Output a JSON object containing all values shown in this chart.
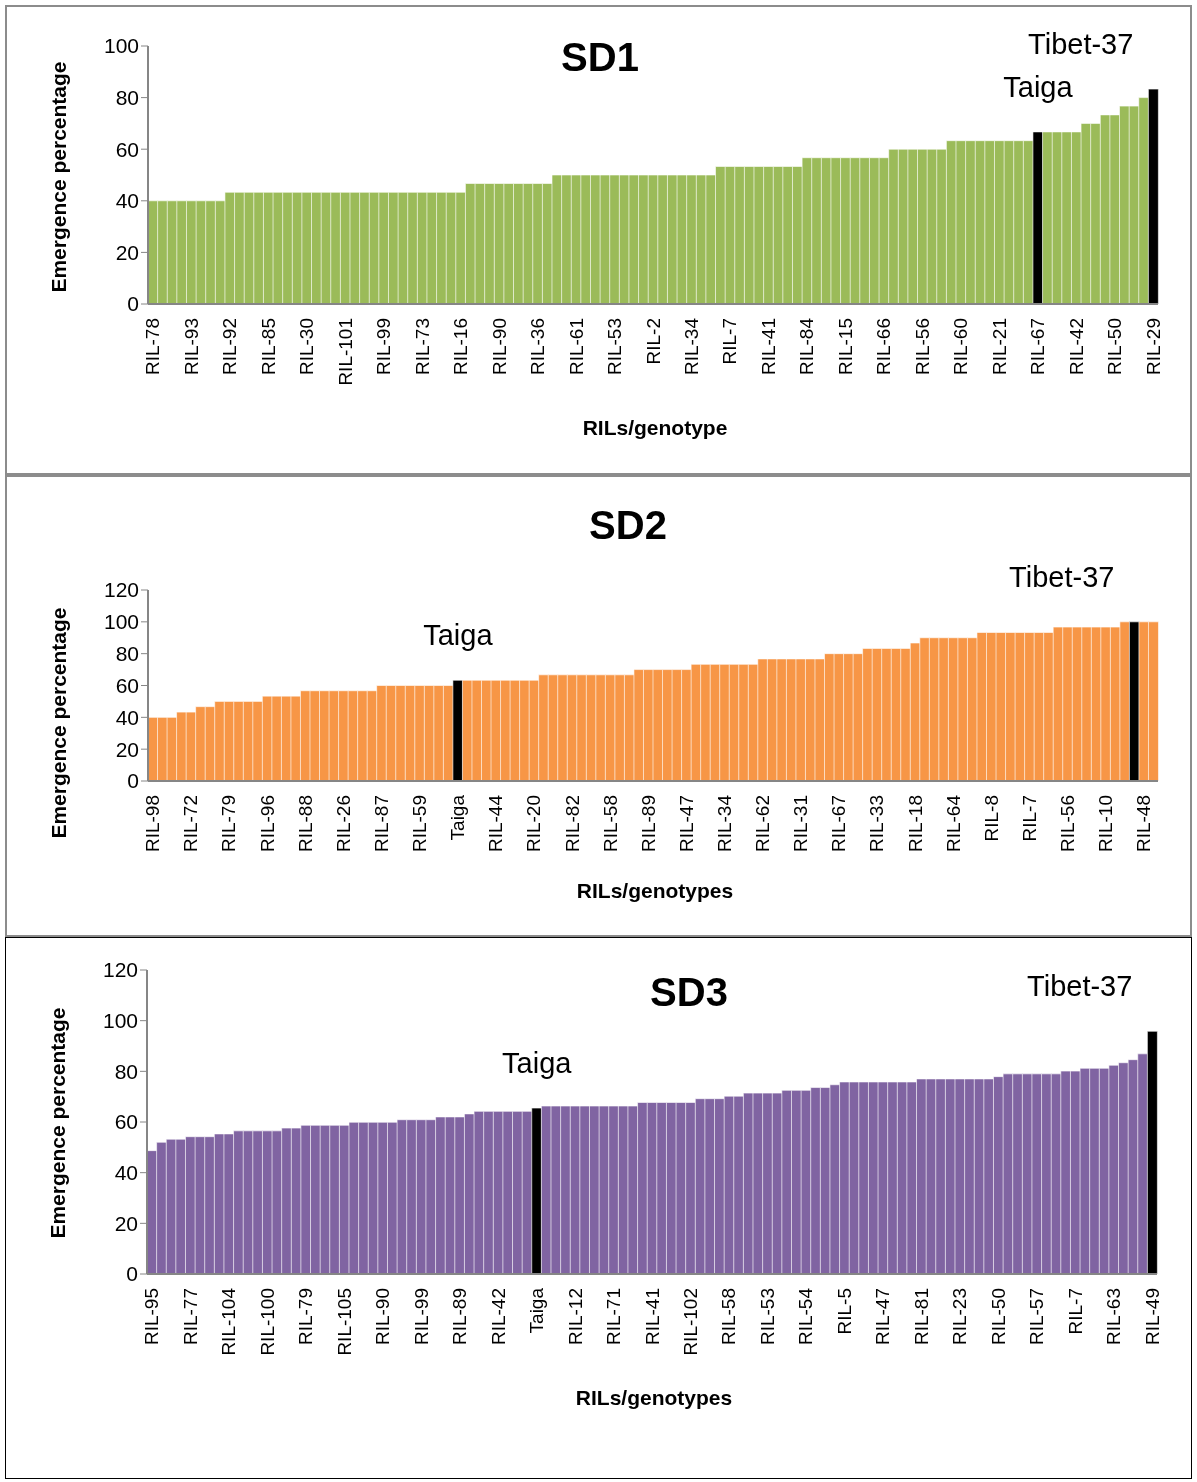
{
  "chart_data": [
    {
      "type": "bar",
      "title": "SD1",
      "xlabel": "RILs/genotype",
      "ylabel": "Emergence percentage",
      "categories": [
        "RIL-78",
        null,
        null,
        null,
        "RIL-93",
        null,
        null,
        null,
        "RIL-92",
        null,
        null,
        null,
        "RIL-85",
        null,
        null,
        null,
        "RIL-30",
        null,
        null,
        null,
        "RIL-101",
        null,
        null,
        null,
        "RIL-99",
        null,
        null,
        null,
        "RIL-73",
        null,
        null,
        null,
        "RIL-16",
        null,
        null,
        null,
        "RIL-90",
        null,
        null,
        null,
        "RIL-36",
        null,
        null,
        null,
        "RIL-61",
        null,
        null,
        null,
        "RIL-53",
        null,
        null,
        null,
        "RIL-2",
        null,
        null,
        null,
        "RIL-34",
        null,
        null,
        null,
        "RIL-7",
        null,
        null,
        null,
        "RIL-41",
        null,
        null,
        null,
        "RIL-84",
        null,
        null,
        null,
        "RIL-15",
        null,
        null,
        null,
        "RIL-66",
        null,
        null,
        null,
        "RIL-56",
        null,
        null,
        null,
        "RIL-60",
        null,
        null,
        null,
        "RIL-21",
        null,
        null,
        null,
        "RIL-67",
        null,
        null,
        null,
        "RIL-42",
        null,
        null,
        null,
        "RIL-50",
        null,
        null,
        null,
        "RIL-29"
      ],
      "values": [
        40,
        40,
        40,
        40,
        40,
        40,
        40,
        40,
        43.3,
        43.3,
        43.3,
        43.3,
        43.3,
        43.3,
        43.3,
        43.3,
        43.3,
        43.3,
        43.3,
        43.3,
        43.3,
        43.3,
        43.3,
        43.3,
        43.3,
        43.3,
        43.3,
        43.3,
        43.3,
        43.3,
        43.3,
        43.3,
        43.3,
        46.7,
        46.7,
        46.7,
        46.7,
        46.7,
        46.7,
        46.7,
        46.7,
        46.7,
        50,
        50,
        50,
        50,
        50,
        50,
        50,
        50,
        50,
        50,
        50,
        50,
        50,
        50,
        50,
        50,
        50,
        53.3,
        53.3,
        53.3,
        53.3,
        53.3,
        53.3,
        53.3,
        53.3,
        53.3,
        56.7,
        56.7,
        56.7,
        56.7,
        56.7,
        56.7,
        56.7,
        56.7,
        56.7,
        60,
        60,
        60,
        60,
        60,
        60,
        63.3,
        63.3,
        63.3,
        63.3,
        63.3,
        63.3,
        63.3,
        63.3,
        63.3,
        66.7,
        66.7,
        66.7,
        66.7,
        66.7,
        70,
        70,
        73.3,
        73.3,
        76.7,
        76.7,
        80,
        83.3
      ],
      "colors": [
        "#9bbb59",
        "#9bbb59",
        "#9bbb59",
        "#9bbb59",
        "#9bbb59",
        "#9bbb59",
        "#9bbb59",
        "#9bbb59",
        "#9bbb59",
        "#9bbb59",
        "#9bbb59",
        "#9bbb59",
        "#9bbb59",
        "#9bbb59",
        "#9bbb59",
        "#9bbb59",
        "#9bbb59",
        "#9bbb59",
        "#9bbb59",
        "#9bbb59",
        "#9bbb59",
        "#9bbb59",
        "#9bbb59",
        "#9bbb59",
        "#9bbb59",
        "#9bbb59",
        "#9bbb59",
        "#9bbb59",
        "#9bbb59",
        "#9bbb59",
        "#9bbb59",
        "#9bbb59",
        "#9bbb59",
        "#9bbb59",
        "#9bbb59",
        "#9bbb59",
        "#9bbb59",
        "#9bbb59",
        "#9bbb59",
        "#9bbb59",
        "#9bbb59",
        "#9bbb59",
        "#9bbb59",
        "#9bbb59",
        "#9bbb59",
        "#9bbb59",
        "#9bbb59",
        "#9bbb59",
        "#9bbb59",
        "#9bbb59",
        "#9bbb59",
        "#9bbb59",
        "#9bbb59",
        "#9bbb59",
        "#9bbb59",
        "#9bbb59",
        "#9bbb59",
        "#9bbb59",
        "#9bbb59",
        "#9bbb59",
        "#9bbb59",
        "#9bbb59",
        "#9bbb59",
        "#9bbb59",
        "#9bbb59",
        "#9bbb59",
        "#9bbb59",
        "#9bbb59",
        "#9bbb59",
        "#9bbb59",
        "#9bbb59",
        "#9bbb59",
        "#9bbb59",
        "#9bbb59",
        "#9bbb59",
        "#9bbb59",
        "#9bbb59",
        "#9bbb59",
        "#9bbb59",
        "#9bbb59",
        "#9bbb59",
        "#9bbb59",
        "#9bbb59",
        "#9bbb59",
        "#9bbb59",
        "#9bbb59",
        "#9bbb59",
        "#9bbb59",
        "#9bbb59",
        "#9bbb59",
        "#9bbb59",
        "#9bbb59",
        "#000000",
        "#9bbb59",
        "#9bbb59",
        "#9bbb59",
        "#9bbb59",
        "#9bbb59",
        "#9bbb59",
        "#9bbb59",
        "#9bbb59",
        "#9bbb59",
        "#9bbb59",
        "#9bbb59",
        "#000000"
      ],
      "ylim": [
        0,
        100
      ],
      "yticks": [
        0,
        20,
        40,
        60,
        80,
        100
      ],
      "annotations": [
        "Taiga",
        "Tibet-37"
      ]
    },
    {
      "type": "bar",
      "title": "SD2",
      "xlabel": "RILs/genotypes",
      "ylabel": "Emergence percentage",
      "categories": [
        "RIL-98",
        null,
        null,
        null,
        "RIL-72",
        null,
        null,
        null,
        "RIL-79",
        null,
        null,
        null,
        "RIL-96",
        null,
        null,
        null,
        "RIL-88",
        null,
        null,
        null,
        "RIL-26",
        null,
        null,
        null,
        "RIL-87",
        null,
        null,
        null,
        "RIL-59",
        null,
        null,
        null,
        "Taiga",
        null,
        null,
        null,
        "RIL-44",
        null,
        null,
        null,
        "RIL-20",
        null,
        null,
        null,
        "RIL-82",
        null,
        null,
        null,
        "RIL-58",
        null,
        null,
        null,
        "RIL-89",
        null,
        null,
        null,
        "RIL-47",
        null,
        null,
        null,
        "RIL-34",
        null,
        null,
        null,
        "RIL-62",
        null,
        null,
        null,
        "RIL-31",
        null,
        null,
        null,
        "RIL-67",
        null,
        null,
        null,
        "RIL-33",
        null,
        null,
        null,
        "RIL-18",
        null,
        null,
        null,
        "RIL-64",
        null,
        null,
        null,
        "RIL-8",
        null,
        null,
        null,
        "RIL-7",
        null,
        null,
        null,
        "RIL-56",
        null,
        null,
        null,
        "RIL-10",
        null,
        null,
        null,
        "RIL-48",
        null
      ],
      "values": [
        40,
        40,
        40,
        43.3,
        43.3,
        46.7,
        46.7,
        50,
        50,
        50,
        50,
        50,
        53.3,
        53.3,
        53.3,
        53.3,
        56.7,
        56.7,
        56.7,
        56.7,
        56.7,
        56.7,
        56.7,
        56.7,
        60,
        60,
        60,
        60,
        60,
        60,
        60,
        60,
        63.3,
        63.3,
        63.3,
        63.3,
        63.3,
        63.3,
        63.3,
        63.3,
        63.3,
        66.7,
        66.7,
        66.7,
        66.7,
        66.7,
        66.7,
        66.7,
        66.7,
        66.7,
        66.7,
        70,
        70,
        70,
        70,
        70,
        70,
        73.3,
        73.3,
        73.3,
        73.3,
        73.3,
        73.3,
        73.3,
        76.7,
        76.7,
        76.7,
        76.7,
        76.7,
        76.7,
        76.7,
        80,
        80,
        80,
        80,
        83.3,
        83.3,
        83.3,
        83.3,
        83.3,
        86.7,
        90,
        90,
        90,
        90,
        90,
        90,
        93.3,
        93.3,
        93.3,
        93.3,
        93.3,
        93.3,
        93.3,
        93.3,
        96.7,
        96.7,
        96.7,
        96.7,
        96.7,
        96.7,
        96.7,
        100,
        100,
        100,
        100
      ],
      "colors": [
        "#f79646",
        "#f79646",
        "#f79646",
        "#f79646",
        "#f79646",
        "#f79646",
        "#f79646",
        "#f79646",
        "#f79646",
        "#f79646",
        "#f79646",
        "#f79646",
        "#f79646",
        "#f79646",
        "#f79646",
        "#f79646",
        "#f79646",
        "#f79646",
        "#f79646",
        "#f79646",
        "#f79646",
        "#f79646",
        "#f79646",
        "#f79646",
        "#f79646",
        "#f79646",
        "#f79646",
        "#f79646",
        "#f79646",
        "#f79646",
        "#f79646",
        "#f79646",
        "#000000",
        "#f79646",
        "#f79646",
        "#f79646",
        "#f79646",
        "#f79646",
        "#f79646",
        "#f79646",
        "#f79646",
        "#f79646",
        "#f79646",
        "#f79646",
        "#f79646",
        "#f79646",
        "#f79646",
        "#f79646",
        "#f79646",
        "#f79646",
        "#f79646",
        "#f79646",
        "#f79646",
        "#f79646",
        "#f79646",
        "#f79646",
        "#f79646",
        "#f79646",
        "#f79646",
        "#f79646",
        "#f79646",
        "#f79646",
        "#f79646",
        "#f79646",
        "#f79646",
        "#f79646",
        "#f79646",
        "#f79646",
        "#f79646",
        "#f79646",
        "#f79646",
        "#f79646",
        "#f79646",
        "#f79646",
        "#f79646",
        "#f79646",
        "#f79646",
        "#f79646",
        "#f79646",
        "#f79646",
        "#f79646",
        "#f79646",
        "#f79646",
        "#f79646",
        "#f79646",
        "#f79646",
        "#f79646",
        "#f79646",
        "#f79646",
        "#f79646",
        "#f79646",
        "#f79646",
        "#f79646",
        "#f79646",
        "#f79646",
        "#f79646",
        "#f79646",
        "#f79646",
        "#f79646",
        "#f79646",
        "#f79646",
        "#f79646",
        "#f79646",
        "#000000",
        "#f79646",
        "#f79646"
      ],
      "ylim": [
        0,
        120
      ],
      "yticks": [
        0,
        20,
        40,
        60,
        80,
        100,
        120
      ],
      "annotations": [
        "Taiga",
        "Tibet-37"
      ]
    },
    {
      "type": "bar",
      "title": "SD3",
      "xlabel": "RILs/genotypes",
      "ylabel": "Emergence percentage",
      "categories": [
        "RIL-95",
        null,
        null,
        null,
        "RIL-77",
        null,
        null,
        null,
        "RIL-104",
        null,
        null,
        null,
        "RIL-100",
        null,
        null,
        null,
        "RIL-79",
        null,
        null,
        null,
        "RIL-105",
        null,
        null,
        null,
        "RIL-90",
        null,
        null,
        null,
        "RIL-99",
        null,
        null,
        null,
        "RIL-89",
        null,
        null,
        null,
        "RIL-42",
        null,
        null,
        null,
        "Taiga",
        null,
        null,
        null,
        "RIL-12",
        null,
        null,
        null,
        "RIL-71",
        null,
        null,
        null,
        "RIL-41",
        null,
        null,
        null,
        "RIL-102",
        null,
        null,
        null,
        "RIL-58",
        null,
        null,
        null,
        "RIL-53",
        null,
        null,
        null,
        "RIL-54",
        null,
        null,
        null,
        "RIL-5",
        null,
        null,
        null,
        "RIL-47",
        null,
        null,
        null,
        "RIL-81",
        null,
        null,
        null,
        "RIL-23",
        null,
        null,
        null,
        "RIL-50",
        null,
        null,
        null,
        "RIL-57",
        null,
        null,
        null,
        "RIL-7",
        null,
        null,
        null,
        "RIL-63",
        null,
        null,
        null,
        "RIL-49"
      ],
      "values": [
        48.7,
        52,
        53.2,
        53.2,
        54.2,
        54.2,
        54.2,
        55.3,
        55.3,
        56.5,
        56.5,
        56.5,
        56.5,
        56.5,
        57.6,
        57.6,
        58.7,
        58.7,
        58.7,
        58.7,
        58.7,
        59.9,
        59.9,
        59.9,
        59.9,
        59.9,
        60.9,
        60.9,
        60.9,
        60.9,
        62,
        62,
        62,
        63.2,
        64.2,
        64.2,
        64.2,
        64.2,
        64.2,
        64.2,
        65.5,
        66.3,
        66.3,
        66.3,
        66.3,
        66.3,
        66.3,
        66.3,
        66.3,
        66.3,
        66.3,
        67.7,
        67.7,
        67.7,
        67.7,
        67.7,
        67.7,
        69.2,
        69.2,
        69.2,
        70.2,
        70.2,
        71.4,
        71.4,
        71.4,
        71.4,
        72.5,
        72.5,
        72.5,
        73.6,
        73.6,
        74.7,
        75.8,
        75.8,
        75.8,
        75.8,
        75.8,
        75.8,
        75.8,
        75.8,
        77,
        77,
        77,
        77,
        77,
        77,
        77,
        77,
        77.9,
        79,
        79,
        79,
        79,
        79,
        79,
        80.1,
        80.1,
        81.2,
        81.2,
        81.2,
        82.4,
        83.4,
        84.6,
        86.9,
        95.8
      ],
      "colors": [
        "#8064a2",
        "#8064a2",
        "#8064a2",
        "#8064a2",
        "#8064a2",
        "#8064a2",
        "#8064a2",
        "#8064a2",
        "#8064a2",
        "#8064a2",
        "#8064a2",
        "#8064a2",
        "#8064a2",
        "#8064a2",
        "#8064a2",
        "#8064a2",
        "#8064a2",
        "#8064a2",
        "#8064a2",
        "#8064a2",
        "#8064a2",
        "#8064a2",
        "#8064a2",
        "#8064a2",
        "#8064a2",
        "#8064a2",
        "#8064a2",
        "#8064a2",
        "#8064a2",
        "#8064a2",
        "#8064a2",
        "#8064a2",
        "#8064a2",
        "#8064a2",
        "#8064a2",
        "#8064a2",
        "#8064a2",
        "#8064a2",
        "#8064a2",
        "#8064a2",
        "#000000",
        "#8064a2",
        "#8064a2",
        "#8064a2",
        "#8064a2",
        "#8064a2",
        "#8064a2",
        "#8064a2",
        "#8064a2",
        "#8064a2",
        "#8064a2",
        "#8064a2",
        "#8064a2",
        "#8064a2",
        "#8064a2",
        "#8064a2",
        "#8064a2",
        "#8064a2",
        "#8064a2",
        "#8064a2",
        "#8064a2",
        "#8064a2",
        "#8064a2",
        "#8064a2",
        "#8064a2",
        "#8064a2",
        "#8064a2",
        "#8064a2",
        "#8064a2",
        "#8064a2",
        "#8064a2",
        "#8064a2",
        "#8064a2",
        "#8064a2",
        "#8064a2",
        "#8064a2",
        "#8064a2",
        "#8064a2",
        "#8064a2",
        "#8064a2",
        "#8064a2",
        "#8064a2",
        "#8064a2",
        "#8064a2",
        "#8064a2",
        "#8064a2",
        "#8064a2",
        "#8064a2",
        "#8064a2",
        "#8064a2",
        "#8064a2",
        "#8064a2",
        "#8064a2",
        "#8064a2",
        "#8064a2",
        "#8064a2",
        "#8064a2",
        "#8064a2",
        "#8064a2",
        "#8064a2",
        "#8064a2",
        "#8064a2",
        "#8064a2",
        "#8064a2",
        "#000000"
      ],
      "ylim": [
        0,
        120
      ],
      "yticks": [
        0,
        20,
        40,
        60,
        80,
        100,
        120
      ],
      "annotations": [
        "Taiga",
        "Tibet-37"
      ]
    }
  ]
}
